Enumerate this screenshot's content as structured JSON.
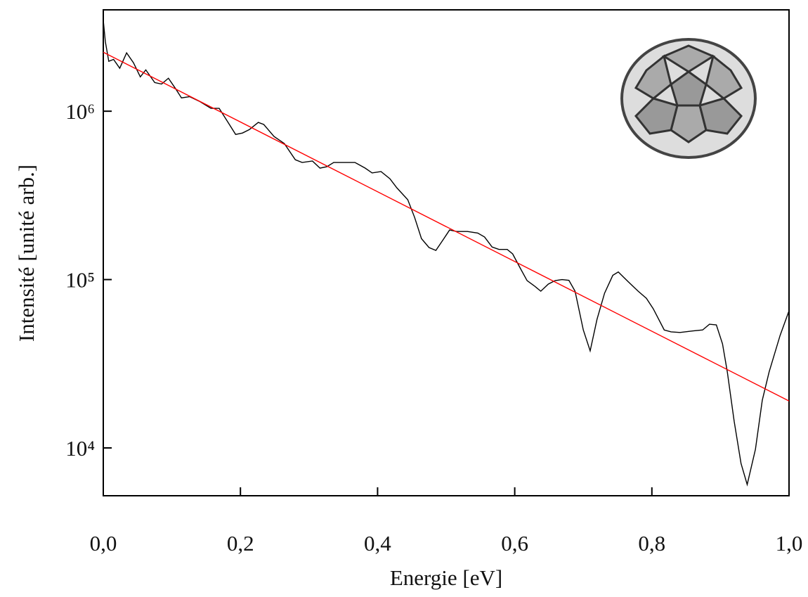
{
  "chart_data": {
    "type": "line",
    "x_label": "Energie [eV]",
    "y_label": "Intensité [unité arb.]",
    "yscale": "log",
    "xlim": [
      0,
      1
    ],
    "ylim": [
      5200,
      4000000
    ],
    "xticks": [
      {
        "value": 0,
        "label": "0,0"
      },
      {
        "value": 0.2,
        "label": "0,2"
      },
      {
        "value": 0.4,
        "label": "0,4"
      },
      {
        "value": 0.6,
        "label": "0,6"
      },
      {
        "value": 0.8,
        "label": "0,8"
      },
      {
        "value": 1,
        "label": "1,0"
      }
    ],
    "yticks": [
      {
        "value": 10000,
        "label": "10⁴"
      },
      {
        "value": 100000,
        "label": "10⁵"
      },
      {
        "value": 1000000,
        "label": "10⁶"
      }
    ],
    "series": [
      {
        "color": "#000000",
        "x": [
          0,
          0.003,
          0.008,
          0.015,
          0.024,
          0.034,
          0.044,
          0.054,
          0.062,
          0.075,
          0.085,
          0.095,
          0.106,
          0.114,
          0.126,
          0.141,
          0.157,
          0.169,
          0.182,
          0.193,
          0.203,
          0.213,
          0.226,
          0.234,
          0.249,
          0.264,
          0.28,
          0.29,
          0.305,
          0.316,
          0.326,
          0.336,
          0.357,
          0.367,
          0.382,
          0.392,
          0.405,
          0.418,
          0.428,
          0.444,
          0.454,
          0.464,
          0.475,
          0.485,
          0.495,
          0.505,
          0.515,
          0.531,
          0.546,
          0.556,
          0.567,
          0.577,
          0.589,
          0.597,
          0.608,
          0.618,
          0.628,
          0.638,
          0.649,
          0.659,
          0.669,
          0.679,
          0.688,
          0.7,
          0.71,
          0.72,
          0.731,
          0.743,
          0.751,
          0.766,
          0.78,
          0.792,
          0.802,
          0.818,
          0.828,
          0.841,
          0.859,
          0.874,
          0.884,
          0.894,
          0.903,
          0.91,
          0.92,
          0.93,
          0.939,
          0.951,
          0.961,
          0.971,
          0.987,
          1.0
        ],
        "values": [
          3460000,
          2590000,
          1980000,
          2030000,
          1800000,
          2220000,
          1940000,
          1600000,
          1760000,
          1480000,
          1450000,
          1570000,
          1350000,
          1200000,
          1220000,
          1140000,
          1040000,
          1040000,
          858000,
          728000,
          742000,
          778000,
          858000,
          834000,
          708000,
          643000,
          515000,
          496000,
          506000,
          459000,
          468000,
          496000,
          496000,
          496000,
          459000,
          430000,
          438000,
          397000,
          351000,
          298000,
          234000,
          175000,
          155000,
          149000,
          171000,
          197000,
          193000,
          193000,
          189000,
          179000,
          156000,
          151000,
          151000,
          142000,
          117000,
          98600,
          92100,
          85300,
          94000,
          98600,
          100000,
          99000,
          85300,
          50200,
          37700,
          58100,
          83000,
          106000,
          111000,
          96600,
          85300,
          77400,
          67100,
          50200,
          48900,
          48500,
          49500,
          50200,
          54300,
          53800,
          41500,
          28300,
          14400,
          8090,
          6060,
          9810,
          19200,
          28300,
          46600,
          65200
        ]
      },
      {
        "color": "#ff0000",
        "x": [
          0,
          1
        ],
        "values": [
          2240000,
          19000
        ]
      }
    ]
  }
}
